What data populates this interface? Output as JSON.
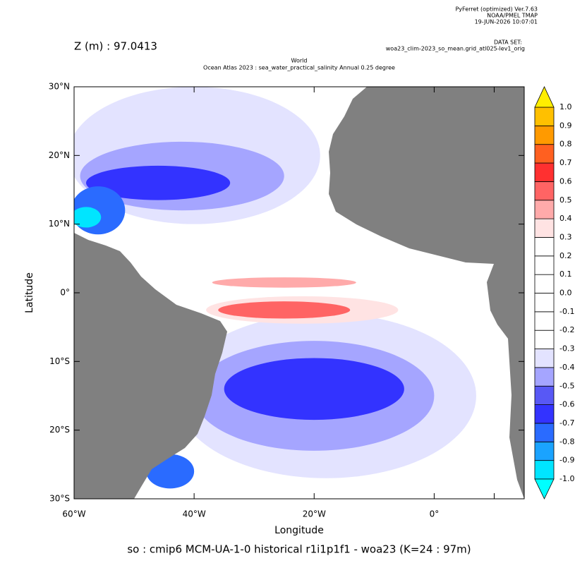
{
  "chart_data": {
    "type": "map",
    "header_lines": [
      "PyFerret (optimized) Ver.7.63",
      "NOAA/PMEL TMAP",
      "19-JUN-2026 10:07:01"
    ],
    "dataset_label": "DATA SET:",
    "dataset": "woa23_clim-2023_so_mean.grid_atl025-lev1_orig",
    "depth_label": "Z (m) : 97.0413",
    "title": "World",
    "subtitle": "Ocean Atlas 2023 : sea_water_practical_salinity Annual  0.25 degree",
    "xlabel": "Longitude",
    "ylabel": "Latitude",
    "caption": "so : cmip6 MCM-UA-1-0 historical r1i1p1f1 - woa23  (K=24 : 97m)",
    "xlim": [
      -60,
      15
    ],
    "ylim": [
      -30,
      30
    ],
    "xticks": [
      {
        "value": -60,
        "label": "60°W"
      },
      {
        "value": -40,
        "label": "40°W"
      },
      {
        "value": -20,
        "label": "20°W"
      },
      {
        "value": 0,
        "label": "0°"
      },
      {
        "value": 10,
        "label": null
      }
    ],
    "yticks": [
      {
        "value": 30,
        "label": "30°N"
      },
      {
        "value": 20,
        "label": "20°N"
      },
      {
        "value": 10,
        "label": "10°N"
      },
      {
        "value": 0,
        "label": "0°"
      },
      {
        "value": -10,
        "label": "10°S"
      },
      {
        "value": -20,
        "label": "20°S"
      },
      {
        "value": -30,
        "label": "30°S"
      }
    ],
    "land_color": "#808080",
    "field": [
      {
        "lon": -18,
        "lat": -15,
        "lon_span": 50,
        "lat_span": 24,
        "value": -0.35
      },
      {
        "lon": -20,
        "lat": -15,
        "lon_span": 40,
        "lat_span": 16,
        "value": -0.45
      },
      {
        "lon": -20,
        "lat": -14,
        "lon_span": 30,
        "lat_span": 9,
        "value": -0.65
      },
      {
        "lon": -40,
        "lat": 20,
        "lon_span": 42,
        "lat_span": 20,
        "value": -0.35
      },
      {
        "lon": -42,
        "lat": 17,
        "lon_span": 34,
        "lat_span": 10,
        "value": -0.45
      },
      {
        "lon": -46,
        "lat": 16,
        "lon_span": 24,
        "lat_span": 5,
        "value": -0.65
      },
      {
        "lon": -56,
        "lat": 12,
        "lon_span": 9,
        "lat_span": 7,
        "value": -0.75
      },
      {
        "lon": -58,
        "lat": 11,
        "lon_span": 5,
        "lat_span": 3,
        "value": -0.95
      },
      {
        "lon": -44,
        "lat": -26,
        "lon_span": 8,
        "lat_span": 5,
        "value": -0.75
      },
      {
        "lon": -22,
        "lat": -2.5,
        "lon_span": 32,
        "lat_span": 4,
        "value": 0.35
      },
      {
        "lon": -25,
        "lat": -2.5,
        "lon_span": 22,
        "lat_span": 2.5,
        "value": 0.55
      },
      {
        "lon": -25,
        "lat": 1.5,
        "lon_span": 24,
        "lat_span": 1.5,
        "value": 0.45
      }
    ],
    "colorbar": {
      "levels": [
        {
          "value": -1,
          "label": "-1.0"
        },
        -0.9,
        -0.8,
        -0.7,
        -0.6,
        -0.5,
        -0.4,
        -0.3,
        -0.2,
        -0.1,
        {
          "value": 0,
          "label": "0.0"
        },
        0.1,
        0.2,
        0.3,
        0.4,
        0.5,
        0.6,
        0.7,
        0.8,
        0.9,
        {
          "value": 1,
          "label": "1.0"
        }
      ],
      "colors": [
        "#00e5ff",
        "#1aa3ff",
        "#2a6bff",
        "#3333ff",
        "#5858f5",
        "#a5a5ff",
        "#e3e3ff",
        "#ffffff",
        "#ffffff",
        "#ffffff",
        "#ffffff",
        "#ffffff",
        "#ffffff",
        "#ffe3e3",
        "#ffaaaa",
        "#ff6464",
        "#ff3030",
        "#ff6020",
        "#ff9a00",
        "#ffc000"
      ],
      "under_color": "#00ffff",
      "over_color": "#ffee00"
    }
  }
}
